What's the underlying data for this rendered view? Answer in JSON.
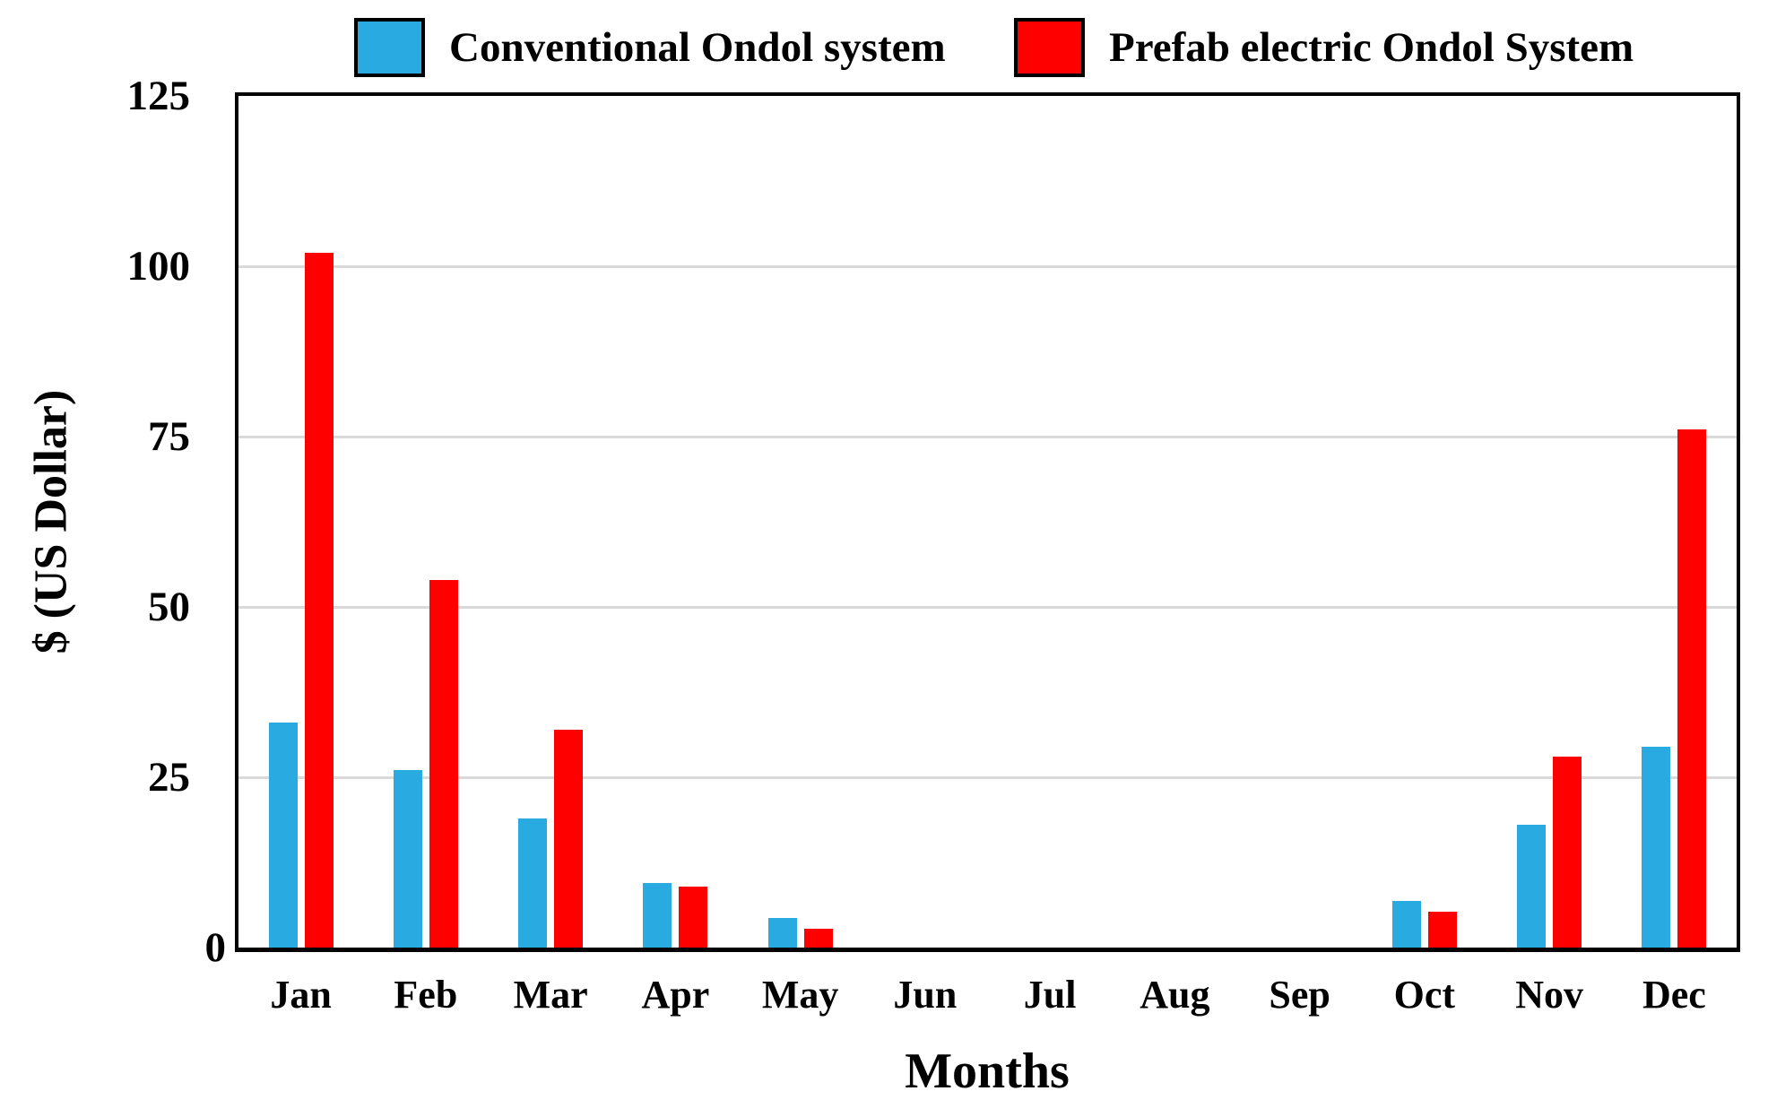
{
  "legend": {
    "items": [
      {
        "label": "Conventional Ondol system",
        "color": "#29abe2"
      },
      {
        "label": "Prefab electric Ondol System",
        "color": "#ff0000"
      }
    ]
  },
  "chart_data": {
    "type": "bar",
    "categories": [
      "Jan",
      "Feb",
      "Mar",
      "Apr",
      "May",
      "Jun",
      "Jul",
      "Aug",
      "Sep",
      "Oct",
      "Nov",
      "Dec"
    ],
    "series": [
      {
        "name": "Conventional Ondol system",
        "color": "#29abe2",
        "values": [
          33,
          26,
          19,
          9.5,
          4.4,
          0,
          0,
          0,
          0,
          6.8,
          18,
          29.5
        ]
      },
      {
        "name": "Prefab electric Ondol System",
        "color": "#ff0000",
        "values": [
          102,
          54,
          32,
          9,
          2.7,
          0,
          0,
          0,
          0,
          5.3,
          28,
          76
        ]
      }
    ],
    "title": "",
    "xlabel": "Months",
    "ylabel": "$ (US Dollar)",
    "ylim": [
      0,
      125
    ],
    "yticks": [
      0,
      25,
      50,
      75,
      100,
      125
    ],
    "grid": true,
    "legend_position": "top",
    "axis_color": "#000000",
    "gridline_color": "#d9d9d9"
  }
}
